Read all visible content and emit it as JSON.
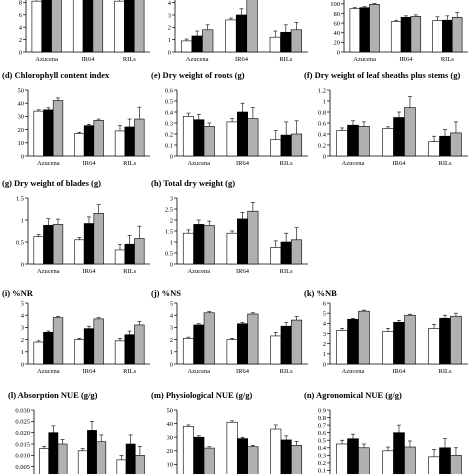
{
  "figure": {
    "legend_colors": {
      "white": "#ffffff",
      "black": "#000000",
      "grey": "#b0b0b0"
    },
    "categories": [
      "Azucena",
      "IR64",
      "RILs"
    ]
  },
  "chart_data": [
    {
      "id": "a",
      "type": "bar",
      "title": "",
      "ylim": [
        0,
        10
      ],
      "yticks": [
        0,
        2,
        4,
        6,
        8
      ],
      "ytick_labels": [
        "0",
        "2",
        "4",
        "6",
        "8"
      ],
      "categories": [
        "Azucena",
        "IR64",
        "RILs"
      ],
      "series": [
        {
          "values": [
            8.2,
            9.6,
            8.2
          ],
          "errors": [
            0.4,
            0.3,
            0.5
          ]
        },
        {
          "values": [
            8.6,
            9.8,
            8.4
          ],
          "errors": [
            0.4,
            0.3,
            0.5
          ]
        },
        {
          "values": [
            8.9,
            9.9,
            8.8
          ],
          "errors": [
            0.4,
            0.3,
            0.6
          ]
        }
      ]
    },
    {
      "id": "b",
      "type": "bar",
      "title": "",
      "ylim": [
        0,
        4.7
      ],
      "yticks": [
        0,
        1,
        2,
        3,
        4
      ],
      "ytick_labels": [
        "0",
        "1",
        "2",
        "3",
        "4"
      ],
      "categories": [
        "Azucena",
        "IR64",
        "RILs"
      ],
      "series": [
        {
          "values": [
            0.9,
            2.6,
            1.2
          ],
          "errors": [
            0.15,
            0.15,
            0.5
          ]
        },
        {
          "values": [
            1.3,
            3.0,
            1.6
          ],
          "errors": [
            0.4,
            0.5,
            0.6
          ]
        },
        {
          "values": [
            1.8,
            4.6,
            1.8
          ],
          "errors": [
            0.4,
            0.3,
            0.6
          ]
        }
      ]
    },
    {
      "id": "c",
      "type": "bar",
      "title": "",
      "ylim": [
        0,
        110
      ],
      "yticks": [
        0,
        20,
        40,
        60,
        80,
        100
      ],
      "ytick_labels": [
        "0",
        "20",
        "40",
        "60",
        "80",
        "100"
      ],
      "categories": [
        "Azucena",
        "IR64",
        "RILs"
      ],
      "series": [
        {
          "values": [
            90,
            63,
            65
          ],
          "errors": [
            2,
            3,
            8
          ]
        },
        {
          "values": [
            92,
            72,
            66
          ],
          "errors": [
            2,
            3,
            9
          ]
        },
        {
          "values": [
            99,
            74,
            72
          ],
          "errors": [
            2,
            3,
            10
          ]
        }
      ]
    },
    {
      "id": "d",
      "type": "bar",
      "title": "(d) Chlorophyll content index",
      "ylim": [
        0,
        50
      ],
      "yticks": [
        0,
        10,
        20,
        30,
        40,
        50
      ],
      "ytick_labels": [
        "0",
        "10",
        "20",
        "30",
        "40",
        "50"
      ],
      "categories": [
        "Azucena",
        "IR64",
        "RILs"
      ],
      "series": [
        {
          "values": [
            34,
            17,
            19
          ],
          "errors": [
            1,
            1,
            4
          ]
        },
        {
          "values": [
            35,
            23,
            22
          ],
          "errors": [
            1.5,
            1,
            6
          ]
        },
        {
          "values": [
            42,
            27,
            28
          ],
          "errors": [
            2,
            1,
            9
          ]
        }
      ]
    },
    {
      "id": "e",
      "type": "bar",
      "title": "(e) Dry weight of roots (g)",
      "ylim": [
        0,
        0.6
      ],
      "yticks": [
        0,
        0.1,
        0.2,
        0.3,
        0.4,
        0.5,
        0.6
      ],
      "ytick_labels": [
        "0",
        "0.1",
        "0.2",
        "0.3",
        "0.4",
        "0.5",
        "0.6"
      ],
      "categories": [
        "Azucena",
        "IR64",
        "RILs"
      ],
      "series": [
        {
          "values": [
            0.36,
            0.31,
            0.15
          ],
          "errors": [
            0.03,
            0.03,
            0.08
          ]
        },
        {
          "values": [
            0.33,
            0.4,
            0.19
          ],
          "errors": [
            0.05,
            0.08,
            0.12
          ]
        },
        {
          "values": [
            0.27,
            0.34,
            0.2
          ],
          "errors": [
            0.03,
            0.1,
            0.12
          ]
        }
      ]
    },
    {
      "id": "f",
      "type": "bar",
      "title": "(f) Dry weight of leaf sheaths plus stems (g)",
      "ylim": [
        0,
        1.2
      ],
      "yticks": [
        0,
        0.2,
        0.4,
        0.6,
        0.8,
        1.0,
        1.2
      ],
      "ytick_labels": [
        "0",
        "0.2",
        "0.4",
        "0.6",
        "0.8",
        "1",
        "1.2"
      ],
      "categories": [
        "Azucena",
        "IR64",
        "RILs"
      ],
      "series": [
        {
          "values": [
            0.46,
            0.5,
            0.26
          ],
          "errors": [
            0.05,
            0.03,
            0.1
          ]
        },
        {
          "values": [
            0.56,
            0.7,
            0.36
          ],
          "errors": [
            0.08,
            0.1,
            0.12
          ]
        },
        {
          "values": [
            0.54,
            0.88,
            0.42
          ],
          "errors": [
            0.08,
            0.2,
            0.2
          ]
        }
      ]
    },
    {
      "id": "g",
      "type": "bar",
      "title": "(g) Dry weight of blades (g)",
      "ylim": [
        0,
        1.5
      ],
      "yticks": [
        0,
        0.5,
        1.0,
        1.5
      ],
      "ytick_labels": [
        "0",
        "0.5",
        "1",
        "1.5"
      ],
      "categories": [
        "Azucena",
        "IR64",
        "RILs"
      ],
      "series": [
        {
          "values": [
            0.62,
            0.55,
            0.32
          ],
          "errors": [
            0.05,
            0.05,
            0.12
          ]
        },
        {
          "values": [
            0.88,
            0.92,
            0.45
          ],
          "errors": [
            0.15,
            0.15,
            0.2
          ]
        },
        {
          "values": [
            0.9,
            1.15,
            0.58
          ],
          "errors": [
            0.12,
            0.2,
            0.28
          ]
        }
      ]
    },
    {
      "id": "h",
      "type": "bar",
      "title": "(h) Total dry weight (g)",
      "ylim": [
        0,
        3
      ],
      "yticks": [
        0,
        0.5,
        1.0,
        1.5,
        2.0,
        2.5,
        3.0
      ],
      "ytick_labels": [
        "0",
        "0.5",
        "1",
        "1.5",
        "2",
        "2.5",
        "3"
      ],
      "categories": [
        "Azucena",
        "IR64",
        "RILs"
      ],
      "series": [
        {
          "values": [
            1.4,
            1.4,
            0.75
          ],
          "errors": [
            0.15,
            0.1,
            0.3
          ]
        },
        {
          "values": [
            1.8,
            2.05,
            1.0
          ],
          "errors": [
            0.2,
            0.3,
            0.4
          ]
        },
        {
          "values": [
            1.75,
            2.4,
            1.1
          ],
          "errors": [
            0.2,
            0.4,
            0.55
          ]
        }
      ]
    },
    {
      "id": "i",
      "type": "bar",
      "title": "(i) %NR",
      "ylim": [
        0,
        5
      ],
      "yticks": [
        0,
        1,
        2,
        3,
        4,
        5
      ],
      "ytick_labels": [
        "0",
        "1",
        "2",
        "3",
        "4",
        "5"
      ],
      "categories": [
        "Azucena",
        "IR64",
        "RILs"
      ],
      "series": [
        {
          "values": [
            1.8,
            2.0,
            1.9
          ],
          "errors": [
            0.1,
            0.1,
            0.2
          ]
        },
        {
          "values": [
            2.6,
            2.9,
            2.4
          ],
          "errors": [
            0.1,
            0.2,
            0.3
          ]
        },
        {
          "values": [
            3.8,
            3.7,
            3.2
          ],
          "errors": [
            0.1,
            0.1,
            0.3
          ]
        }
      ]
    },
    {
      "id": "j",
      "type": "bar",
      "title": "(j) %NS",
      "ylim": [
        0,
        5
      ],
      "yticks": [
        0,
        1,
        2,
        3,
        4,
        5
      ],
      "ytick_labels": [
        "0",
        "1",
        "2",
        "3",
        "4",
        "5"
      ],
      "categories": [
        "Azucena",
        "IR64",
        "RILs"
      ],
      "series": [
        {
          "values": [
            2.1,
            2.0,
            2.3
          ],
          "errors": [
            0.1,
            0.1,
            0.3
          ]
        },
        {
          "values": [
            3.2,
            3.3,
            3.1
          ],
          "errors": [
            0.1,
            0.1,
            0.3
          ]
        },
        {
          "values": [
            4.2,
            4.1,
            3.6
          ],
          "errors": [
            0.1,
            0.1,
            0.3
          ]
        }
      ]
    },
    {
      "id": "k",
      "type": "bar",
      "title": "(k) %NB",
      "ylim": [
        0,
        6
      ],
      "yticks": [
        0,
        1,
        2,
        3,
        4,
        5,
        6
      ],
      "ytick_labels": [
        "0",
        "1",
        "2",
        "3",
        "4",
        "5",
        "6"
      ],
      "categories": [
        "Azucena",
        "IR64",
        "RILs"
      ],
      "series": [
        {
          "values": [
            3.3,
            3.2,
            3.5
          ],
          "errors": [
            0.2,
            0.3,
            0.4
          ]
        },
        {
          "values": [
            4.4,
            4.1,
            4.5
          ],
          "errors": [
            0.1,
            0.2,
            0.3
          ]
        },
        {
          "values": [
            5.2,
            4.8,
            4.7
          ],
          "errors": [
            0.1,
            0.1,
            0.3
          ]
        }
      ]
    },
    {
      "id": "l",
      "type": "bar",
      "title": "(l) Absorption NUE (g/g)",
      "ylim": [
        0,
        0.03
      ],
      "yticks": [
        0,
        0.005,
        0.01,
        0.015,
        0.02,
        0.025,
        0.03
      ],
      "ytick_labels": [
        "0",
        "0.005",
        "0.010",
        "0.015",
        "0.020",
        "0.025",
        "0.030"
      ],
      "categories": [
        "Azucena",
        "IR64",
        "RILs"
      ],
      "series": [
        {
          "values": [
            0.013,
            0.012,
            0.008
          ],
          "errors": [
            0.001,
            0.001,
            0.002
          ]
        },
        {
          "values": [
            0.02,
            0.021,
            0.015
          ],
          "errors": [
            0.003,
            0.004,
            0.004
          ]
        },
        {
          "values": [
            0.015,
            0.016,
            0.01
          ],
          "errors": [
            0.002,
            0.003,
            0.004
          ]
        }
      ]
    },
    {
      "id": "m",
      "type": "bar",
      "title": "(m) Physiological NUE (g/g)",
      "ylim": [
        0,
        50
      ],
      "yticks": [
        0,
        10,
        20,
        30,
        40,
        50
      ],
      "ytick_labels": [
        "0",
        "10",
        "20",
        "30",
        "40",
        "50"
      ],
      "categories": [
        "Azucena",
        "IR64",
        "RILs"
      ],
      "series": [
        {
          "values": [
            38,
            41,
            36
          ],
          "errors": [
            1,
            1,
            3
          ]
        },
        {
          "values": [
            30,
            29,
            28
          ],
          "errors": [
            1,
            1,
            3
          ]
        },
        {
          "values": [
            22,
            23,
            24
          ],
          "errors": [
            1,
            1,
            3
          ]
        }
      ]
    },
    {
      "id": "n",
      "type": "bar",
      "title": "(n) Agronomical NUE (g/g)",
      "ylim": [
        0,
        0.9
      ],
      "yticks": [
        0,
        0.1,
        0.2,
        0.3,
        0.4,
        0.5,
        0.6,
        0.7,
        0.8,
        0.9
      ],
      "ytick_labels": [
        "0",
        "0.1",
        "0.2",
        "0.3",
        "0.4",
        "0.5",
        "0.6",
        "0.7",
        "0.8",
        "0.9"
      ],
      "categories": [
        "Azucena",
        "IR64",
        "RILs"
      ],
      "series": [
        {
          "values": [
            0.45,
            0.36,
            0.28
          ],
          "errors": [
            0.05,
            0.05,
            0.1
          ]
        },
        {
          "values": [
            0.52,
            0.6,
            0.4
          ],
          "errors": [
            0.06,
            0.1,
            0.12
          ]
        },
        {
          "values": [
            0.4,
            0.41,
            0.3
          ],
          "errors": [
            0.05,
            0.08,
            0.1
          ]
        }
      ]
    }
  ]
}
